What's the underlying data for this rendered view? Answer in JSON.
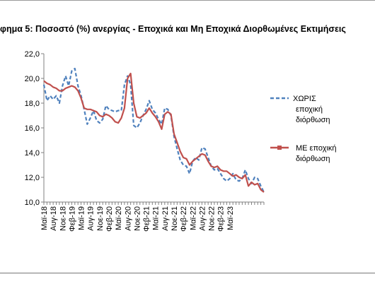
{
  "title": "φημα 5: Ποσοστό (%) ανεργίας - Εποχικά και Μη Εποχικά Διορθωμένες Εκτιμήσεις",
  "colors": {
    "unadjusted": "#4F81BD",
    "adjusted": "#C0504D",
    "axis": "#808080"
  },
  "chart_data": {
    "type": "line",
    "title": "",
    "xlabel": "",
    "ylabel": "",
    "ylim": [
      10,
      22
    ],
    "yticks": [
      "10,0",
      "12,0",
      "14,0",
      "16,0",
      "18,0",
      "20,0",
      "22,0"
    ],
    "x_tick_labels": [
      "Μαϊ-18",
      "Αυγ-18",
      "Νοε-18",
      "Φεβ-19",
      "Μαϊ-19",
      "Αυγ-19",
      "Νοε-19",
      "Φεβ-20",
      "Μαϊ-20",
      "Αυγ-20",
      "Νοε-20",
      "Φεβ-21",
      "Μαϊ-21",
      "Αυγ-21",
      "Νοε-21",
      "Φεβ-22",
      "Μαϊ-22",
      "Αυγ-22",
      "Νοε-22",
      "Φεβ-23",
      "Μαϊ-23"
    ],
    "grid": false,
    "legend_position": "right",
    "series": [
      {
        "name": "ΧΩΡΙΣ εποχική διόρθωση",
        "style": "dashed",
        "values": [
          19.5,
          18.2,
          18.6,
          18.3,
          18.6,
          18.0,
          19.4,
          20.2,
          19.4,
          20.6,
          20.8,
          19.4,
          18.6,
          17.5,
          16.3,
          16.8,
          17.4,
          16.6,
          16.4,
          16.7,
          17.8,
          17.5,
          17.4,
          17.3,
          17.4,
          17.4,
          19.5,
          20.2,
          19.5,
          16.2,
          16.0,
          16.4,
          17.0,
          17.5,
          18.2,
          17.5,
          17.2,
          16.7,
          16.3,
          17.6,
          17.5,
          17.0,
          15.3,
          14.3,
          13.4,
          13.0,
          12.9,
          12.3,
          13.3,
          13.6,
          13.4,
          14.4,
          14.3,
          13.6,
          12.9,
          12.6,
          12.7,
          12.3,
          11.9,
          11.7,
          11.9,
          12.3,
          11.8,
          11.7,
          11.9,
          12.6,
          11.9,
          11.5,
          12.0,
          11.9,
          11.3,
          10.8
        ]
      },
      {
        "name": "ΜΕ εποχική διόρθωση",
        "style": "solid",
        "values": [
          19.8,
          19.6,
          19.5,
          19.3,
          19.2,
          19.0,
          19.0,
          19.2,
          19.3,
          19.4,
          19.3,
          19.0,
          18.4,
          17.6,
          17.5,
          17.5,
          17.4,
          17.3,
          17.0,
          16.9,
          17.1,
          17.0,
          16.8,
          16.5,
          16.4,
          16.8,
          17.6,
          20.0,
          20.4,
          18.0,
          16.9,
          16.8,
          17.0,
          17.2,
          17.6,
          17.2,
          16.9,
          16.5,
          15.9,
          17.1,
          17.3,
          17.1,
          15.5,
          14.8,
          14.1,
          13.6,
          13.5,
          13.0,
          13.3,
          13.5,
          13.7,
          13.9,
          13.8,
          13.3,
          12.9,
          12.8,
          12.9,
          12.6,
          12.5,
          12.5,
          12.3,
          12.1,
          12.2,
          12.0,
          11.9,
          12.2,
          11.3,
          11.6,
          11.4,
          11.5,
          11.0,
          10.8
        ]
      }
    ]
  }
}
